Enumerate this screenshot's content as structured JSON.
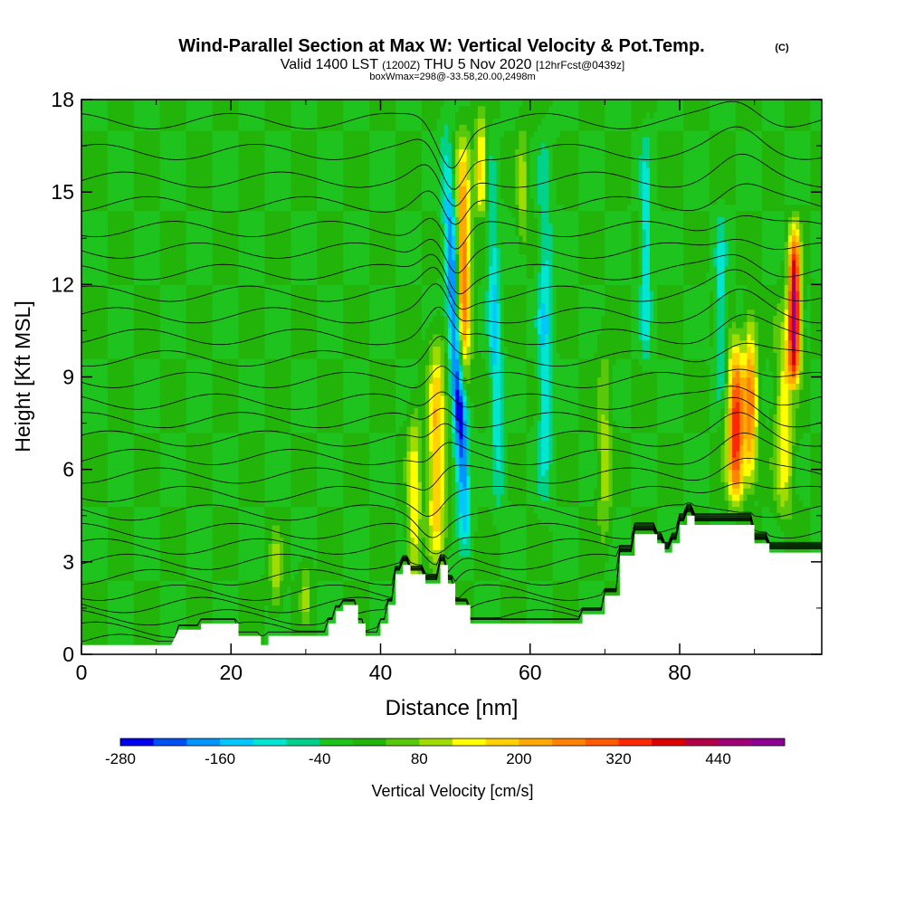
{
  "title": {
    "main": "Wind-Parallel Section at Max W: Vertical Velocity & Pot.Temp.",
    "copyright": "(C)",
    "line2_a": "Valid 1400 LST",
    "line2_b": "(1200Z)",
    "line2_c": "THU 5 Nov 2020",
    "line2_d": "[12hrFcst@0439z]",
    "line3": "boxWmax=298@-33.58,20.00,2498m"
  },
  "chart_data": {
    "type": "heatmap",
    "xlabel": "Distance [nm]",
    "ylabel": "Height [Kft MSL]",
    "xlim": [
      0,
      99
    ],
    "ylim": [
      0,
      18
    ],
    "x_ticks": [
      0,
      20,
      40,
      60,
      80
    ],
    "y_ticks": [
      0,
      3,
      6,
      9,
      12,
      15,
      18
    ],
    "field": "Vertical Velocity [cm/s]",
    "colorbar": {
      "label": "Vertical Velocity [cm/s]",
      "tick_labels": [
        "-280",
        "-160",
        "-40",
        "80",
        "200",
        "320",
        "440"
      ],
      "tick_values": [
        -280,
        -160,
        -40,
        80,
        200,
        320,
        440
      ],
      "range": [
        -280,
        520
      ],
      "step": 40,
      "colors": [
        "#0000f0",
        "#0050f5",
        "#0096ff",
        "#00c8ff",
        "#00e6d2",
        "#00d28c",
        "#1ec31e",
        "#23b40a",
        "#5ac80a",
        "#a0dc00",
        "#ffff00",
        "#ffd200",
        "#ffaa00",
        "#ff8200",
        "#ff5a00",
        "#ff2800",
        "#dc0000",
        "#b40046",
        "#a00078",
        "#8c0096"
      ]
    },
    "background_w": 0,
    "terrain_kft": [
      [
        0,
        0.3
      ],
      [
        12,
        0.3
      ],
      [
        13,
        0.8
      ],
      [
        16,
        0.8
      ],
      [
        16,
        1.0
      ],
      [
        21,
        1.0
      ],
      [
        21,
        0.6
      ],
      [
        24,
        0.6
      ],
      [
        24,
        0.3
      ],
      [
        25,
        0.3
      ],
      [
        25,
        0.6
      ],
      [
        33,
        0.6
      ],
      [
        33,
        1.0
      ],
      [
        34,
        1.0
      ],
      [
        34,
        1.4
      ],
      [
        35,
        1.4
      ],
      [
        35,
        1.6
      ],
      [
        37,
        1.6
      ],
      [
        37,
        1.0
      ],
      [
        38,
        1.0
      ],
      [
        38,
        0.6
      ],
      [
        40,
        0.6
      ],
      [
        40,
        1.0
      ],
      [
        41,
        1.0
      ],
      [
        41,
        1.6
      ],
      [
        42,
        1.6
      ],
      [
        42,
        2.6
      ],
      [
        43,
        2.6
      ],
      [
        43,
        2.9
      ],
      [
        44,
        2.9
      ],
      [
        44,
        2.6
      ],
      [
        46,
        2.6
      ],
      [
        46,
        2.3
      ],
      [
        48,
        2.3
      ],
      [
        48,
        2.9
      ],
      [
        49,
        2.9
      ],
      [
        49,
        2.3
      ],
      [
        50,
        2.3
      ],
      [
        50,
        1.6
      ],
      [
        52,
        1.6
      ],
      [
        52,
        1.0
      ],
      [
        67,
        1.0
      ],
      [
        67,
        1.3
      ],
      [
        70,
        1.3
      ],
      [
        70,
        1.9
      ],
      [
        72,
        1.9
      ],
      [
        72,
        3.2
      ],
      [
        74,
        3.2
      ],
      [
        74,
        3.9
      ],
      [
        77,
        3.9
      ],
      [
        77,
        3.6
      ],
      [
        78,
        3.6
      ],
      [
        78,
        3.3
      ],
      [
        79,
        3.3
      ],
      [
        79,
        3.6
      ],
      [
        80,
        3.6
      ],
      [
        80,
        4.2
      ],
      [
        81,
        4.2
      ],
      [
        81,
        4.5
      ],
      [
        82,
        4.5
      ],
      [
        82,
        4.2
      ],
      [
        90,
        4.2
      ],
      [
        90,
        3.6
      ],
      [
        92,
        3.6
      ],
      [
        92,
        3.3
      ],
      [
        99,
        3.3
      ]
    ],
    "updrafts": [
      {
        "x": 44.5,
        "z": [
          1.5,
          9.0
        ],
        "w": 160,
        "halfwidth": 0.9
      },
      {
        "x": 47.5,
        "z": [
          2.5,
          11.5
        ],
        "w": 220,
        "halfwidth": 1.1
      },
      {
        "x": 51.0,
        "z": [
          8.0,
          18.0
        ],
        "w": 300,
        "halfwidth": 1.0
      },
      {
        "x": 53.5,
        "z": [
          14.0,
          18.0
        ],
        "w": 200,
        "halfwidth": 0.8
      },
      {
        "x": 87.5,
        "z": [
          4.5,
          11.0
        ],
        "w": 360,
        "halfwidth": 1.1
      },
      {
        "x": 89.5,
        "z": [
          5.0,
          12.0
        ],
        "w": 240,
        "halfwidth": 0.9
      },
      {
        "x": 95.3,
        "z": [
          8.5,
          14.6
        ],
        "w": 480,
        "halfwidth": 0.8
      },
      {
        "x": 94.0,
        "z": [
          4.0,
          12.0
        ],
        "w": 160,
        "halfwidth": 1.2
      },
      {
        "x": 26.0,
        "z": [
          1.0,
          4.5
        ],
        "w": 100,
        "halfwidth": 0.8
      },
      {
        "x": 30.0,
        "z": [
          1.0,
          3.5
        ],
        "w": 90,
        "halfwidth": 0.7
      },
      {
        "x": 70.0,
        "z": [
          3.0,
          11.0
        ],
        "w": 100,
        "halfwidth": 0.9
      },
      {
        "x": 59.0,
        "z": [
          13.0,
          18.0
        ],
        "w": 100,
        "halfwidth": 0.8
      }
    ],
    "downdrafts": [
      {
        "x_top": 48.5,
        "x_bottom": 51.5,
        "z": [
          3.0,
          18.0
        ],
        "w": -280,
        "halfwidth": 0.9
      },
      {
        "x_top": 54.5,
        "x_bottom": 56.0,
        "z": [
          4.0,
          18.0
        ],
        "w": -130,
        "halfwidth": 0.8
      },
      {
        "x_top": 62.0,
        "x_bottom": 62.0,
        "z": [
          4.0,
          18.0
        ],
        "w": -120,
        "halfwidth": 0.9
      },
      {
        "x_top": 75.5,
        "x_bottom": 75.5,
        "z": [
          9.0,
          18.0
        ],
        "w": -120,
        "halfwidth": 0.7
      },
      {
        "x_top": 85.5,
        "x_bottom": 85.5,
        "z": [
          8.0,
          15.0
        ],
        "w": -110,
        "halfwidth": 0.7
      }
    ],
    "theta_contours": {
      "count": 28,
      "base_heights_kft": [
        0.4,
        0.8,
        1.2,
        1.6,
        2.0,
        2.5,
        3.0,
        3.5,
        4.0,
        4.6,
        5.2,
        5.8,
        6.4,
        7.0,
        7.6,
        8.2,
        8.9,
        9.6,
        10.3,
        11.0,
        11.7,
        12.4,
        13.1,
        13.8,
        14.6,
        15.4,
        16.3,
        17.3
      ]
    }
  }
}
